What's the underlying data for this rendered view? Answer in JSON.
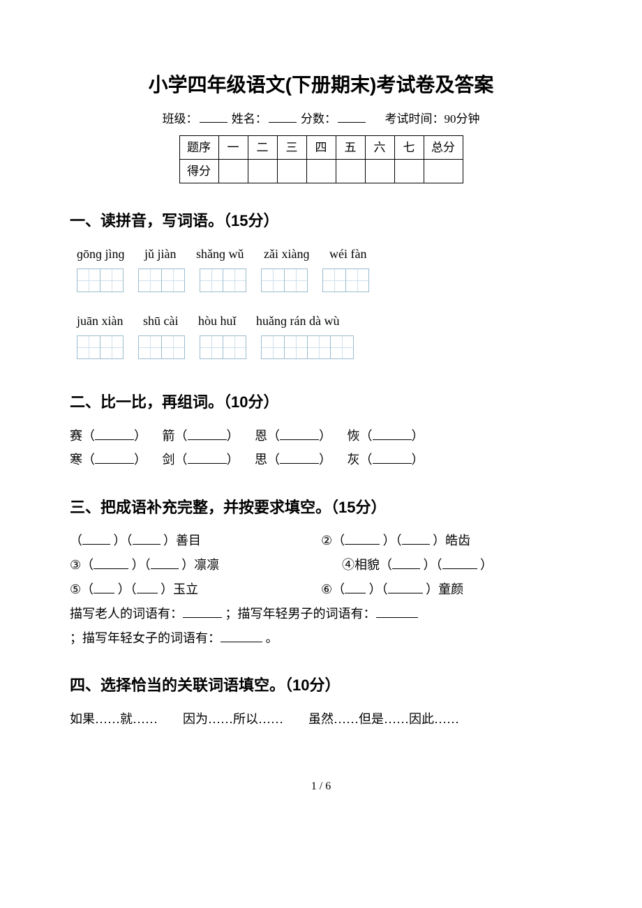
{
  "title": "小学四年级语文(下册期末)考试卷及答案",
  "meta": {
    "class_label": "班级：",
    "name_label": "姓名：",
    "score_label": "分数：",
    "time_label": "考试时间：90分钟"
  },
  "score_table": {
    "row1": [
      "题序",
      "一",
      "二",
      "三",
      "四",
      "五",
      "六",
      "七",
      "总分"
    ],
    "row2_label": "得分"
  },
  "s1": {
    "heading": "一、读拼音，写词语。（15分）",
    "row1": [
      "ɡōnɡ jìnɡ",
      "jǔ jiàn",
      "shǎnɡ wǔ",
      "zǎi xiànɡ",
      "wéi fàn"
    ],
    "row1_cells": [
      2,
      2,
      2,
      2,
      2
    ],
    "row2": [
      "juān xiàn",
      "shū cài",
      "hòu huǐ",
      "huǎnɡ rán dà wù"
    ],
    "row2_cells": [
      2,
      2,
      2,
      4
    ]
  },
  "s2": {
    "heading": "二、比一比，再组词。（10分）",
    "pairs": [
      [
        "赛（",
        "）",
        "箭（",
        "）",
        "恩（",
        "）",
        "恢（",
        "）"
      ],
      [
        "寒（",
        "）",
        "剑（",
        "）",
        "思（",
        "）",
        "灰（",
        "）"
      ]
    ]
  },
  "s3": {
    "heading": "三、把成语补充完整，并按要求填空。（15分）",
    "l1a": "（",
    "l1b": "）（",
    "l1c": "）善目",
    "l1r1": "②（",
    "l1r2": "）（",
    "l1r3": "）皓齿",
    "l2a": "③（",
    "l2b": "）（",
    "l2c": "）凛凛",
    "l2r1": "④相貌（",
    "l2r2": "）（",
    "l2r3": "）",
    "l3a": "⑤（",
    "l3b": "）（",
    "l3c": "）玉立",
    "l3r1": "⑥（",
    "l3r2": "）（",
    "l3r3": "）童颜",
    "l4": "描写老人的词语有：",
    "l4b": "；描写年轻男子的词语有：",
    "l5": "；描写年轻女子的词语有：",
    "l5b": "。"
  },
  "s4": {
    "heading": "四、选择恰当的关联词语填空。（10分）",
    "opts": "如果……就……　　因为……所以……　　虽然……但是……因此……"
  },
  "pagenum": "1 / 6"
}
